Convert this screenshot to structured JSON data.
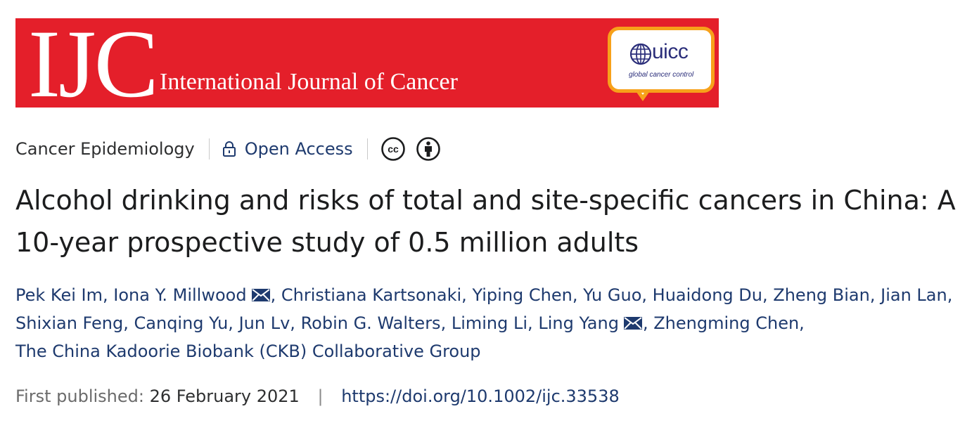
{
  "banner": {
    "logo": "IJC",
    "journal_name": "International Journal of Cancer",
    "partner_logo": {
      "name": "uicc",
      "tagline": "global cancer control"
    },
    "colors": {
      "banner_red": "#e41f2a",
      "partner_orange": "#f7a11a",
      "partner_blue": "#2b2e7a"
    }
  },
  "meta": {
    "category": "Cancer Epidemiology",
    "access_icon": "lock-icon",
    "access_label": "Open Access",
    "license_icons": [
      "creative-commons-icon",
      "attribution-icon"
    ]
  },
  "article": {
    "title": "Alcohol drinking and risks of total and site-specific cancers in China: A 10-year prospective study of 0.5 million adults"
  },
  "authors": [
    {
      "name": "Pek Kei Im",
      "sep": ",",
      "corresponding": false
    },
    {
      "name": "Iona Y. Millwood",
      "sep": ",",
      "corresponding": true
    },
    {
      "name": "Christiana Kartsonaki",
      "sep": ",",
      "corresponding": false
    },
    {
      "name": "Yiping Chen",
      "sep": ",",
      "corresponding": false
    },
    {
      "name": "Yu Guo",
      "sep": ",",
      "corresponding": false
    },
    {
      "name": "Huaidong Du",
      "sep": ",",
      "corresponding": false
    },
    {
      "name": "Zheng Bian",
      "sep": ",",
      "corresponding": false
    },
    {
      "name": "Jian Lan",
      "sep": ",",
      "corresponding": false
    },
    {
      "name": "Shixian Feng",
      "sep": ",",
      "corresponding": false
    },
    {
      "name": "Canqing Yu",
      "sep": ",",
      "corresponding": false
    },
    {
      "name": "Jun Lv",
      "sep": ",",
      "corresponding": false
    },
    {
      "name": "Robin G. Walters",
      "sep": ",",
      "corresponding": false
    },
    {
      "name": "Liming Li",
      "sep": ",",
      "corresponding": false
    },
    {
      "name": "Ling Yang",
      "sep": ",",
      "corresponding": true
    },
    {
      "name": "Zhengming Chen",
      "sep": ",",
      "corresponding": false
    },
    {
      "name": "The China Kadoorie Biobank (CKB) Collaborative Group",
      "sep": "",
      "corresponding": false
    }
  ],
  "publication": {
    "label": "First published:",
    "date": "26 February 2021",
    "separator": "|",
    "doi": "https://doi.org/10.1002/ijc.33538"
  },
  "colors": {
    "link_blue": "#1e3a6e",
    "text_dark": "#1c1d1e",
    "text_muted": "#6b6b6b"
  }
}
